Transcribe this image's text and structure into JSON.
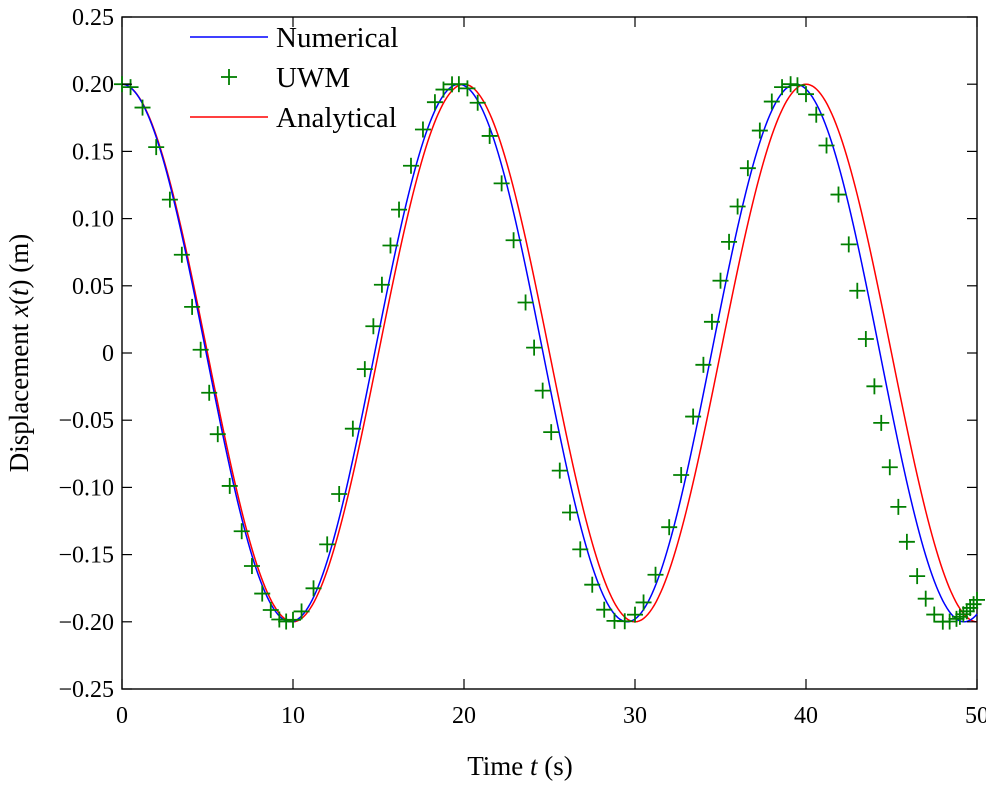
{
  "chart_data": {
    "type": "line",
    "title": "",
    "xlabel": {
      "prefix": "Time ",
      "var": "t",
      "suffix": " (s)"
    },
    "ylabel": {
      "prefix": "Displacement ",
      "var": "x",
      "open": "(",
      "arg": "t",
      "close": ") (m)"
    },
    "xlim": [
      0,
      50
    ],
    "ylim": [
      -0.25,
      0.25
    ],
    "xticks": [
      0,
      10,
      20,
      30,
      40,
      50
    ],
    "xtick_labels": [
      "0",
      "10",
      "20",
      "30",
      "40",
      "50"
    ],
    "yticks": [
      -0.25,
      -0.2,
      -0.15,
      -0.1,
      -0.05,
      0,
      0.05,
      0.1,
      0.15,
      0.2,
      0.25
    ],
    "ytick_labels": [
      "−0.25",
      "−0.20",
      "−0.15",
      "−0.10",
      "−0.05",
      "0",
      "0.05",
      "0.10",
      "0.15",
      "0.20",
      "0.25"
    ],
    "grid": false,
    "legend_position": "top-left",
    "series": [
      {
        "name": "Numerical",
        "kind": "line",
        "color": "#0000ff",
        "amplitude": 0.2,
        "period": 19.7,
        "t_start": 0,
        "t_end": 50,
        "samples": 400
      },
      {
        "name": "UWM",
        "kind": "marker",
        "marker": "+",
        "color": "#007f00",
        "amplitude": 0.2,
        "period": 19.7,
        "times": [
          0,
          0.5,
          1.2,
          2.0,
          2.8,
          3.5,
          4.1,
          4.6,
          5.1,
          5.6,
          6.3,
          7.0,
          7.6,
          8.2,
          8.7,
          9.2,
          9.6,
          10.0,
          10.5,
          11.2,
          12.0,
          12.7,
          13.5,
          14.2,
          14.7,
          15.2,
          15.7,
          16.2,
          16.9,
          17.6,
          18.3,
          18.8,
          19.3,
          19.7,
          20.2,
          20.8,
          21.5,
          22.2,
          22.9,
          23.6,
          24.1,
          24.6,
          25.1,
          25.6,
          26.2,
          26.8,
          27.5,
          28.2,
          28.8,
          29.4,
          30.0,
          30.5,
          31.2,
          32.0,
          32.7,
          33.4,
          34.0,
          34.5,
          35.0,
          35.5,
          36.0,
          36.6,
          37.3,
          38.0,
          38.6,
          39.1,
          39.5,
          40.0,
          40.6,
          41.2,
          41.9,
          42.5,
          43.0,
          43.5,
          44.0,
          44.4,
          44.9,
          45.4,
          45.9,
          46.5,
          47.0,
          47.5,
          48.0,
          48.4,
          48.8,
          49.0,
          49.2,
          49.4,
          49.6,
          49.8,
          50.0
        ],
        "values": [
          0.2,
          0.1978,
          0.1826,
          0.1532,
          0.1141,
          0.0731,
          0.0343,
          0.0024,
          -0.0296,
          -0.0604,
          -0.0989,
          -0.1326,
          -0.1585,
          -0.179,
          -0.1912,
          -0.1983,
          -0.1998,
          -0.1985,
          -0.1923,
          -0.1751,
          -0.1424,
          -0.1049,
          -0.0563,
          -0.012,
          0.0199,
          0.0508,
          0.08,
          0.1067,
          0.1393,
          0.1663,
          0.1866,
          0.196,
          0.1999,
          0.2,
          0.1969,
          0.1862,
          0.1615,
          0.1262,
          0.0839,
          0.0376,
          0.004,
          -0.028,
          -0.0589,
          -0.0875,
          -0.1187,
          -0.1461,
          -0.1724,
          -0.191,
          -0.1993,
          -0.1996,
          -0.1947,
          -0.1856,
          -0.165,
          -0.1296,
          -0.0908,
          -0.0473,
          -0.0088,
          0.0232,
          0.0538,
          0.0827,
          0.109,
          0.1375,
          0.1655,
          0.1871,
          0.1978,
          0.2,
          0.1992,
          0.1926,
          0.1773,
          0.1544,
          0.1179,
          0.0808,
          0.0463,
          0.0104,
          -0.0248,
          -0.052,
          -0.085,
          -0.1145,
          -0.1405,
          -0.166,
          -0.1828,
          -0.1946,
          -0.1999,
          -0.1998,
          -0.1978,
          -0.1963,
          -0.1944,
          -0.1922,
          -0.1897,
          -0.1869,
          -0.1837
        ]
      },
      {
        "name": "Analytical",
        "kind": "line",
        "color": "#ff0000",
        "amplitude": 0.2,
        "period": 20.0,
        "t_start": 0,
        "t_end": 50,
        "samples": 400
      }
    ]
  }
}
